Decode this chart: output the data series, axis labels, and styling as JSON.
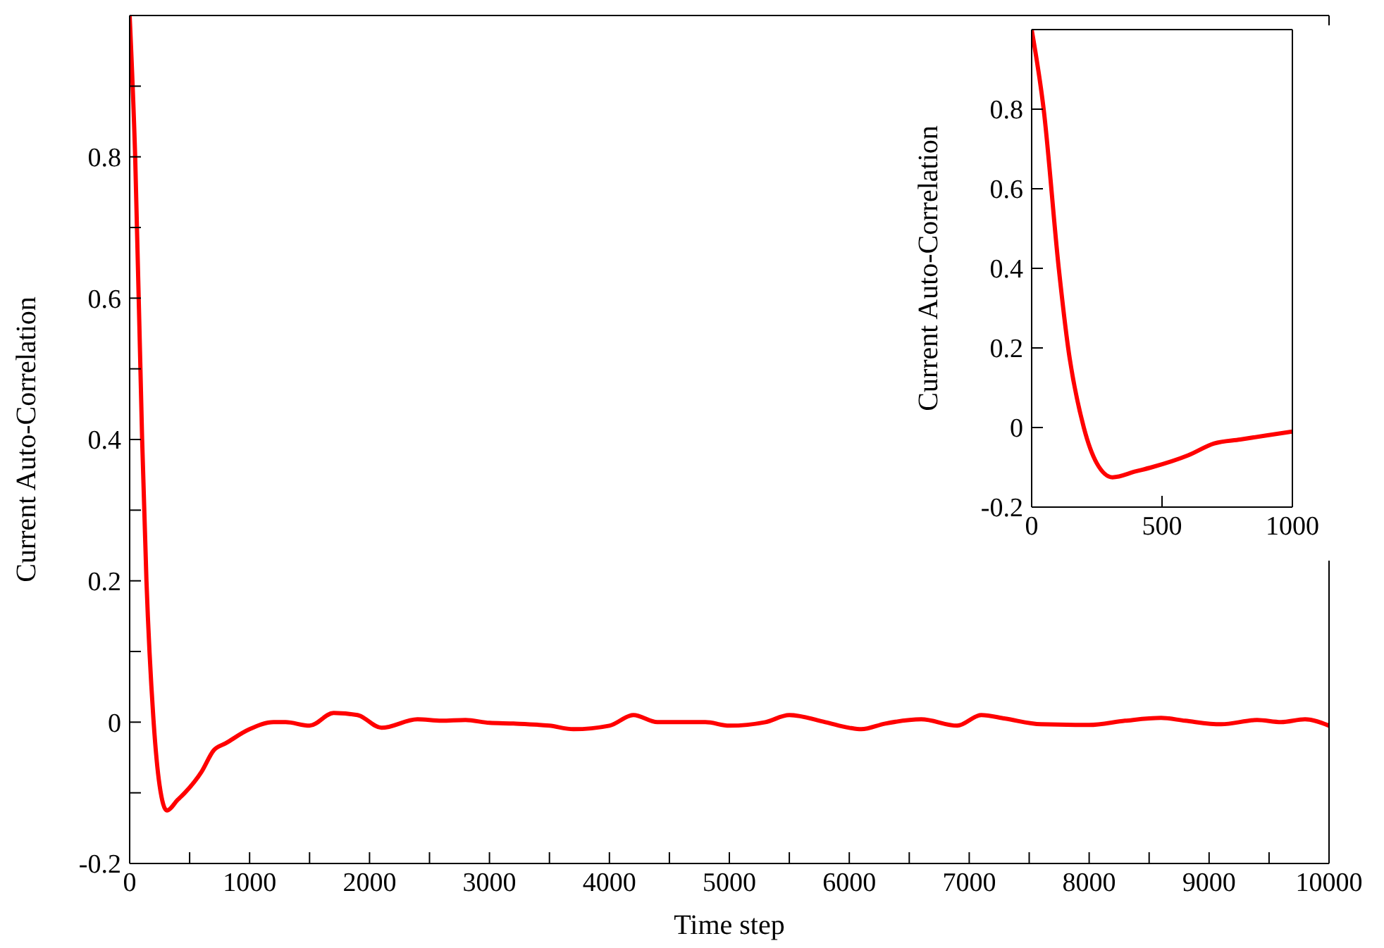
{
  "chart_data": [
    {
      "type": "line",
      "xlabel": "Time step",
      "ylabel": "Current Auto-Correlation",
      "xlim": [
        0,
        10000
      ],
      "ylim": [
        -0.2,
        1
      ],
      "xticks": [
        0,
        {
          "value": 500,
          "label": null
        },
        1000,
        {
          "value": 1500,
          "label": null
        },
        2000,
        {
          "value": 2500,
          "label": null
        },
        3000,
        {
          "value": 3500,
          "label": null
        },
        4000,
        {
          "value": 4500,
          "label": null
        },
        5000,
        {
          "value": 5500,
          "label": null
        },
        6000,
        {
          "value": 6500,
          "label": null
        },
        7000,
        {
          "value": 7500,
          "label": null
        },
        8000,
        {
          "value": 8500,
          "label": null
        },
        9000,
        {
          "value": 9500,
          "label": null
        },
        10000
      ],
      "yticks": [
        -0.2,
        {
          "value": -0.1,
          "label": null
        },
        0,
        {
          "value": 0.1,
          "label": null
        },
        0.2,
        {
          "value": 0.3,
          "label": null
        },
        0.4,
        {
          "value": 0.5,
          "label": null
        },
        0.6,
        {
          "value": 0.7,
          "label": null
        },
        0.8,
        {
          "value": 0.9,
          "label": null
        },
        {
          "value": 1,
          "label": null
        }
      ],
      "marker": "none",
      "line_style": "solid",
      "x": [
        0,
        46,
        104,
        140,
        200,
        250,
        310,
        400,
        460,
        600,
        700,
        800,
        1000,
        1200,
        1300,
        1500,
        1700,
        1900,
        2100,
        2400,
        2600,
        2800,
        3000,
        3200,
        3500,
        3700,
        4000,
        4200,
        4400,
        4800,
        5000,
        5300,
        5500,
        5800,
        6000,
        6100,
        6300,
        6600,
        6900,
        7100,
        7300,
        7600,
        8000,
        8300,
        8600,
        8800,
        9100,
        9400,
        9600,
        9800,
        10000
      ],
      "series": [
        {
          "color": "#ff0000",
          "values": [
            1.0,
            0.8,
            0.4,
            0.2,
            0.0,
            -0.09,
            -0.125,
            -0.11,
            -0.1,
            -0.07,
            -0.04,
            -0.03,
            -0.01,
            0.0,
            0.0,
            -0.005,
            0.013,
            0.01,
            -0.008,
            0.004,
            0.002,
            0.003,
            -0.001,
            -0.002,
            -0.005,
            -0.01,
            -0.005,
            0.01,
            0.0,
            0.0,
            -0.005,
            0.0,
            0.01,
            0.0,
            -0.008,
            -0.01,
            -0.002,
            0.004,
            -0.005,
            0.01,
            0.005,
            -0.003,
            -0.004,
            0.002,
            0.006,
            0.002,
            -0.003,
            0.003,
            0.0,
            0.004,
            -0.005
          ]
        }
      ]
    },
    {
      "type": "line",
      "ylabel": "Current Auto-Correlation",
      "xlim": [
        0,
        1000
      ],
      "ylim": [
        -0.2,
        1
      ],
      "xticks": [
        0,
        500,
        1000
      ],
      "yticks": [
        -0.2,
        0,
        0.2,
        0.4,
        0.6,
        0.8,
        {
          "value": 1,
          "label": null
        }
      ],
      "marker": "none",
      "line_style": "solid",
      "x": [
        0,
        46,
        104,
        140,
        200,
        250,
        310,
        400,
        460,
        600,
        700,
        800,
        1000
      ],
      "series": [
        {
          "color": "#ff0000",
          "values": [
            1.0,
            0.8,
            0.4,
            0.2,
            0.0,
            -0.09,
            -0.125,
            -0.11,
            -0.1,
            -0.07,
            -0.04,
            -0.03,
            -0.01
          ]
        }
      ]
    }
  ]
}
